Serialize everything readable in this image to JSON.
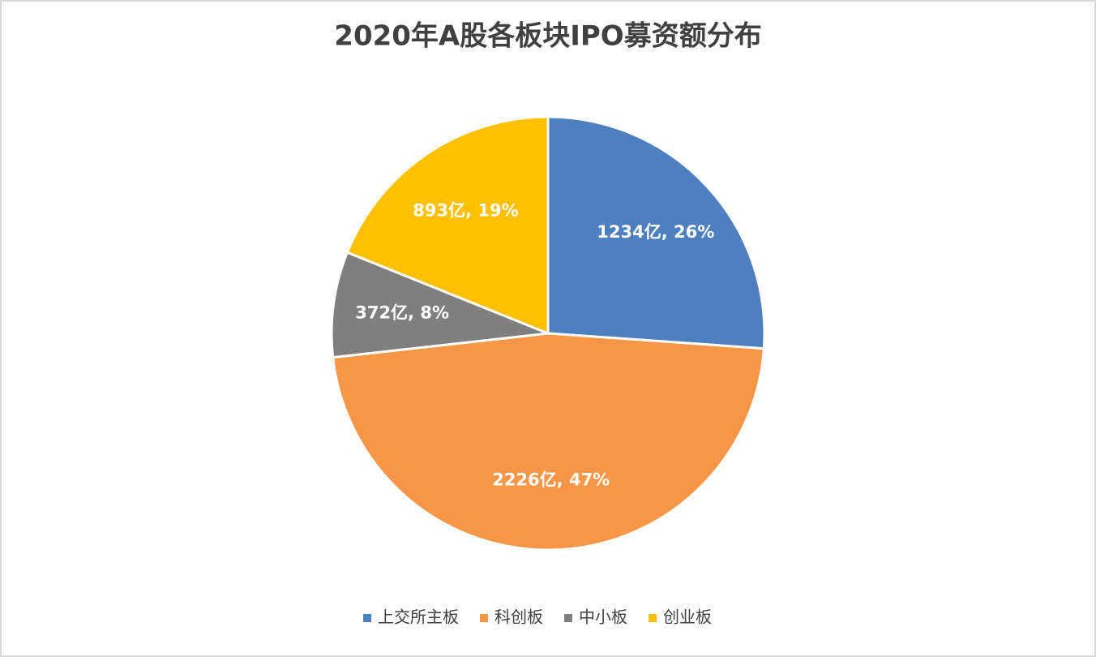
{
  "chart_data": {
    "type": "pie",
    "title": "2020年A股各板块IPO募资额分布",
    "categories": [
      "上交所主板",
      "科创板",
      "中小板",
      "创业板"
    ],
    "values": [
      1234,
      2226,
      372,
      893
    ],
    "value_labels": [
      "1234亿, 26%",
      "2226亿, 47%",
      "372亿, 8%",
      "893亿, 19%"
    ],
    "colors": [
      "#4e7fbf",
      "#f79646",
      "#7f7f7f",
      "#ffc000"
    ],
    "legend": "bottom"
  }
}
